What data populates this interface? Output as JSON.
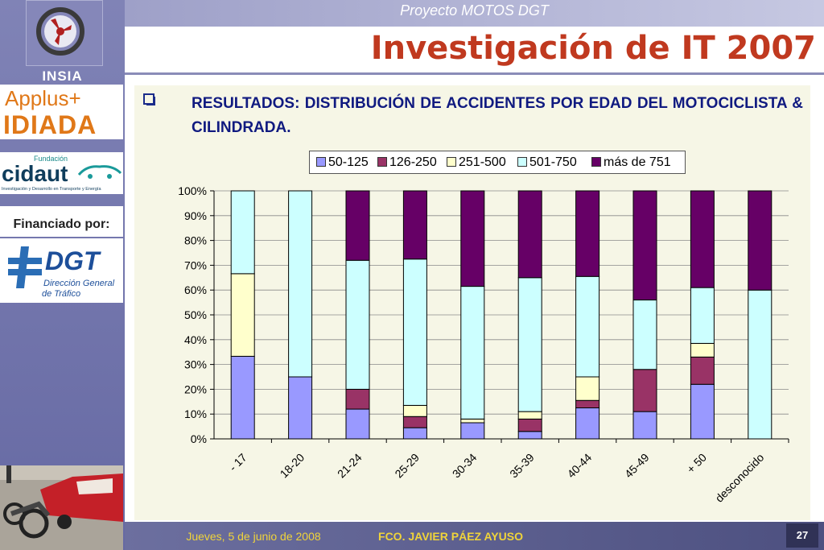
{
  "header": {
    "project": "Proyecto MOTOS DGT",
    "title": "Investigación de IT 2007"
  },
  "sidebar": {
    "insia_label": "INSIA",
    "applus_logo": "Applus+",
    "idiada_logo": "IDIADA",
    "cidaut_small": "Fundación",
    "cidaut_logo": "cidaut",
    "cidaut_tagline": "Investigación y Desarrollo en Transporte y Energía",
    "financed_by": "Financiado por:",
    "dgt_logo": "DGT",
    "dgt_sub1": "Dirección General",
    "dgt_sub2": "de Tráfico",
    "insia_icon": "insia-emblem-icon"
  },
  "content": {
    "bullet_icon": "checkbox-bullet-icon",
    "heading": "RESULTADOS: DISTRIBUCIÓN DE ACCIDENTES POR EDAD DEL MOTOCICLISTA & CILINDRADA."
  },
  "chart_data": {
    "type": "bar",
    "stacked": true,
    "percent": true,
    "categories": [
      "- 17",
      "18-20",
      "21-24",
      "25-29",
      "30-34",
      "35-39",
      "40-44",
      "45-49",
      "+ 50",
      "desconocido"
    ],
    "series": [
      {
        "name": "50-125",
        "color": "#9999ff",
        "values": [
          33.3,
          25,
          12,
          4.5,
          6.5,
          3,
          12.5,
          11,
          22,
          0
        ]
      },
      {
        "name": "126-250",
        "color": "#993366",
        "values": [
          0,
          0,
          8,
          4.5,
          0,
          5,
          3,
          17,
          11,
          0
        ]
      },
      {
        "name": "251-500",
        "color": "#ffffcc",
        "values": [
          33.3,
          0,
          0,
          4.5,
          1.5,
          3,
          9.5,
          0,
          5.5,
          0
        ]
      },
      {
        "name": "501-750",
        "color": "#ccffff",
        "values": [
          33.4,
          75,
          52,
          59,
          53.5,
          54,
          40.5,
          28,
          22.5,
          60
        ]
      },
      {
        "name": "más de 751",
        "color": "#660066",
        "values": [
          0,
          0,
          28,
          27.5,
          38.5,
          35,
          34.5,
          44,
          39,
          40
        ]
      }
    ],
    "yticks": [
      "0%",
      "10%",
      "20%",
      "30%",
      "40%",
      "50%",
      "60%",
      "70%",
      "80%",
      "90%",
      "100%"
    ],
    "ylim": [
      0,
      100
    ],
    "grid": true,
    "legend": "top"
  },
  "footer": {
    "date": "Jueves, 5 de junio de 2008",
    "author": "FCO. JAVIER PÁEZ AYUSO",
    "page": "27"
  }
}
